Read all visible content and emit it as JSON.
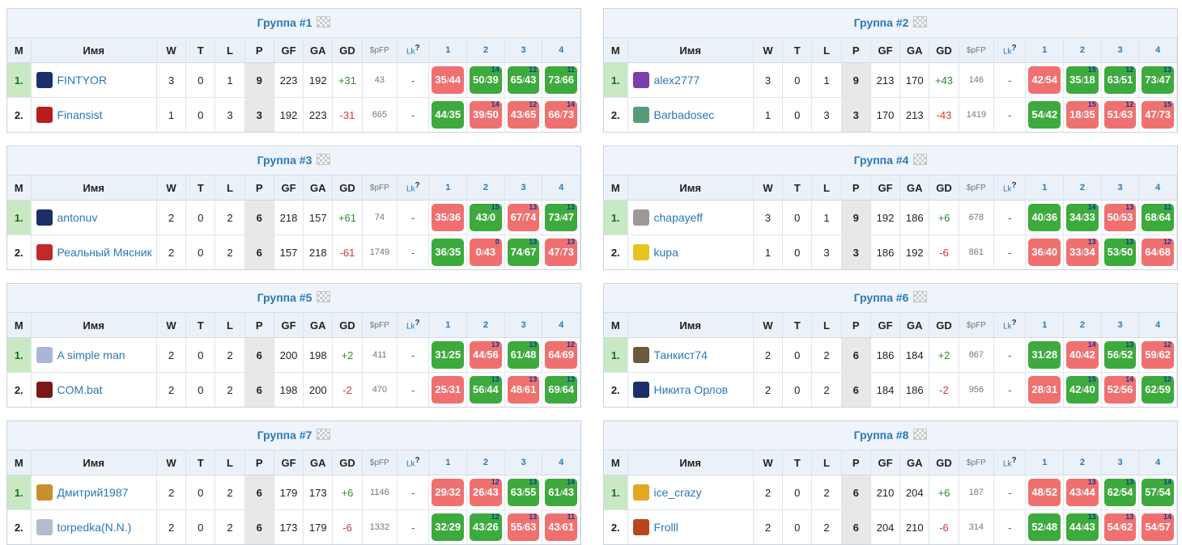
{
  "headers": {
    "m": "М",
    "name": "Имя",
    "w": "W",
    "t": "T",
    "l": "L",
    "p": "P",
    "gf": "GF",
    "ga": "GA",
    "gd": "GD",
    "spfp": "$pFP",
    "lk": "Lk",
    "lk_sup": "?",
    "rounds": [
      "1",
      "2",
      "3",
      "4"
    ]
  },
  "groups": [
    {
      "title": "Группа #1",
      "rows": [
        {
          "pos": "1.",
          "name": "FINTYOR",
          "avatar_color": "#1b2f6b",
          "w": "3",
          "t": "0",
          "l": "1",
          "p": "9",
          "gf": "223",
          "ga": "192",
          "gd": "+31",
          "spfp": "43",
          "lk": "-",
          "scores": [
            {
              "a": "35",
              "b": "44",
              "win": false,
              "tiny": ""
            },
            {
              "a": "50",
              "b": "39",
              "win": true,
              "tiny": "14"
            },
            {
              "a": "65",
              "b": "43",
              "win": true,
              "tiny": "12"
            },
            {
              "a": "73",
              "b": "66",
              "win": true,
              "tiny": "11"
            }
          ]
        },
        {
          "pos": "2.",
          "name": "Finansist",
          "avatar_color": "#b81d1d",
          "w": "1",
          "t": "0",
          "l": "3",
          "p": "3",
          "gf": "192",
          "ga": "223",
          "gd": "-31",
          "spfp": "665",
          "lk": "-",
          "scores": [
            {
              "a": "44",
              "b": "35",
              "win": true,
              "tiny": ""
            },
            {
              "a": "39",
              "b": "50",
              "win": false,
              "tiny": "14"
            },
            {
              "a": "43",
              "b": "65",
              "win": false,
              "tiny": "12"
            },
            {
              "a": "66",
              "b": "73",
              "win": false,
              "tiny": "14"
            }
          ]
        }
      ]
    },
    {
      "title": "Группа #2",
      "rows": [
        {
          "pos": "1.",
          "name": "alex2777",
          "avatar_color": "#7a3fa8",
          "w": "3",
          "t": "0",
          "l": "1",
          "p": "9",
          "gf": "213",
          "ga": "170",
          "gd": "+43",
          "spfp": "146",
          "lk": "-",
          "scores": [
            {
              "a": "42",
              "b": "54",
              "win": false,
              "tiny": ""
            },
            {
              "a": "35",
              "b": "18",
              "win": true,
              "tiny": "15"
            },
            {
              "a": "63",
              "b": "51",
              "win": true,
              "tiny": "12"
            },
            {
              "a": "73",
              "b": "47",
              "win": true,
              "tiny": "13"
            }
          ]
        },
        {
          "pos": "2.",
          "name": "Barbadosec",
          "avatar_color": "#5a9a7a",
          "w": "1",
          "t": "0",
          "l": "3",
          "p": "3",
          "gf": "170",
          "ga": "213",
          "gd": "-43",
          "spfp": "1419",
          "lk": "-",
          "scores": [
            {
              "a": "54",
              "b": "42",
              "win": true,
              "tiny": ""
            },
            {
              "a": "18",
              "b": "35",
              "win": false,
              "tiny": "15"
            },
            {
              "a": "51",
              "b": "63",
              "win": false,
              "tiny": "12"
            },
            {
              "a": "47",
              "b": "73",
              "win": false,
              "tiny": "15"
            }
          ]
        }
      ]
    },
    {
      "title": "Группа #3",
      "rows": [
        {
          "pos": "1.",
          "name": "antonuv",
          "avatar_color": "#1b2f6b",
          "w": "2",
          "t": "0",
          "l": "2",
          "p": "6",
          "gf": "218",
          "ga": "157",
          "gd": "+61",
          "spfp": "74",
          "lk": "-",
          "scores": [
            {
              "a": "35",
              "b": "36",
              "win": false,
              "tiny": ""
            },
            {
              "a": "43",
              "b": "0",
              "win": true,
              "tiny": "15"
            },
            {
              "a": "67",
              "b": "74",
              "win": false,
              "tiny": "13"
            },
            {
              "a": "73",
              "b": "47",
              "win": true,
              "tiny": "13"
            }
          ]
        },
        {
          "pos": "2.",
          "name": "Реальный Мясник",
          "avatar_color": "#c02a2a",
          "w": "2",
          "t": "0",
          "l": "2",
          "p": "6",
          "gf": "157",
          "ga": "218",
          "gd": "-61",
          "spfp": "1749",
          "lk": "-",
          "scores": [
            {
              "a": "36",
              "b": "35",
              "win": true,
              "tiny": ""
            },
            {
              "a": "0",
              "b": "43",
              "win": false,
              "tiny": "0"
            },
            {
              "a": "74",
              "b": "67",
              "win": true,
              "tiny": "13"
            },
            {
              "a": "47",
              "b": "73",
              "win": false,
              "tiny": "13"
            }
          ]
        }
      ]
    },
    {
      "title": "Группа #4",
      "rows": [
        {
          "pos": "1.",
          "name": "chapayeff",
          "avatar_color": "#9a9a9a",
          "w": "3",
          "t": "0",
          "l": "1",
          "p": "9",
          "gf": "192",
          "ga": "186",
          "gd": "+6",
          "spfp": "678",
          "lk": "-",
          "scores": [
            {
              "a": "40",
              "b": "36",
              "win": true,
              "tiny": ""
            },
            {
              "a": "34",
              "b": "33",
              "win": true,
              "tiny": "14"
            },
            {
              "a": "50",
              "b": "53",
              "win": false,
              "tiny": "13"
            },
            {
              "a": "68",
              "b": "64",
              "win": true,
              "tiny": "11"
            }
          ]
        },
        {
          "pos": "2.",
          "name": "kupa",
          "avatar_color": "#e5c51f",
          "w": "1",
          "t": "0",
          "l": "3",
          "p": "3",
          "gf": "186",
          "ga": "192",
          "gd": "-6",
          "spfp": "861",
          "lk": "-",
          "scores": [
            {
              "a": "36",
              "b": "40",
              "win": false,
              "tiny": ""
            },
            {
              "a": "33",
              "b": "34",
              "win": false,
              "tiny": "13"
            },
            {
              "a": "53",
              "b": "50",
              "win": true,
              "tiny": "13"
            },
            {
              "a": "64",
              "b": "68",
              "win": false,
              "tiny": "12"
            }
          ]
        }
      ]
    },
    {
      "title": "Группа #5",
      "rows": [
        {
          "pos": "1.",
          "name": "A simple man",
          "avatar_color": "#a9b7d6",
          "w": "2",
          "t": "0",
          "l": "2",
          "p": "6",
          "gf": "200",
          "ga": "198",
          "gd": "+2",
          "spfp": "411",
          "lk": "-",
          "scores": [
            {
              "a": "31",
              "b": "25",
              "win": true,
              "tiny": ""
            },
            {
              "a": "44",
              "b": "56",
              "win": false,
              "tiny": "13"
            },
            {
              "a": "61",
              "b": "48",
              "win": true,
              "tiny": "13"
            },
            {
              "a": "64",
              "b": "69",
              "win": false,
              "tiny": "12"
            }
          ]
        },
        {
          "pos": "2.",
          "name": "COM.bat",
          "avatar_color": "#7a1818",
          "w": "2",
          "t": "0",
          "l": "2",
          "p": "6",
          "gf": "198",
          "ga": "200",
          "gd": "-2",
          "spfp": "470",
          "lk": "-",
          "scores": [
            {
              "a": "25",
              "b": "31",
              "win": false,
              "tiny": ""
            },
            {
              "a": "56",
              "b": "44",
              "win": true,
              "tiny": "13"
            },
            {
              "a": "48",
              "b": "61",
              "win": false,
              "tiny": "13"
            },
            {
              "a": "69",
              "b": "64",
              "win": true,
              "tiny": "13"
            }
          ]
        }
      ]
    },
    {
      "title": "Группа #6",
      "rows": [
        {
          "pos": "1.",
          "name": "Танкист74",
          "avatar_color": "#6b5a3c",
          "w": "2",
          "t": "0",
          "l": "2",
          "p": "6",
          "gf": "186",
          "ga": "184",
          "gd": "+2",
          "spfp": "867",
          "lk": "-",
          "scores": [
            {
              "a": "31",
              "b": "28",
              "win": true,
              "tiny": ""
            },
            {
              "a": "40",
              "b": "42",
              "win": false,
              "tiny": "14"
            },
            {
              "a": "56",
              "b": "52",
              "win": true,
              "tiny": "13"
            },
            {
              "a": "59",
              "b": "62",
              "win": false,
              "tiny": "12"
            }
          ]
        },
        {
          "pos": "2.",
          "name": "Никита Орлов",
          "avatar_color": "#1b2f6b",
          "w": "2",
          "t": "0",
          "l": "2",
          "p": "6",
          "gf": "184",
          "ga": "186",
          "gd": "-2",
          "spfp": "956",
          "lk": "-",
          "scores": [
            {
              "a": "28",
              "b": "31",
              "win": false,
              "tiny": ""
            },
            {
              "a": "42",
              "b": "40",
              "win": true,
              "tiny": "15"
            },
            {
              "a": "52",
              "b": "56",
              "win": false,
              "tiny": "14"
            },
            {
              "a": "62",
              "b": "59",
              "win": true,
              "tiny": "12"
            }
          ]
        }
      ]
    },
    {
      "title": "Группа #7",
      "rows": [
        {
          "pos": "1.",
          "name": "Дмитрий1987",
          "avatar_color": "#c8902a",
          "w": "2",
          "t": "0",
          "l": "2",
          "p": "6",
          "gf": "179",
          "ga": "173",
          "gd": "+6",
          "spfp": "1146",
          "lk": "-",
          "scores": [
            {
              "a": "29",
              "b": "32",
              "win": false,
              "tiny": ""
            },
            {
              "a": "26",
              "b": "43",
              "win": false,
              "tiny": "12"
            },
            {
              "a": "63",
              "b": "55",
              "win": true,
              "tiny": "13"
            },
            {
              "a": "61",
              "b": "43",
              "win": true,
              "tiny": "14"
            }
          ]
        },
        {
          "pos": "2.",
          "name": "torpedka(N.N.)",
          "avatar_color": "#b3bccf",
          "w": "2",
          "t": "0",
          "l": "2",
          "p": "6",
          "gf": "173",
          "ga": "179",
          "gd": "-6",
          "spfp": "1332",
          "lk": "-",
          "scores": [
            {
              "a": "32",
              "b": "29",
              "win": true,
              "tiny": ""
            },
            {
              "a": "43",
              "b": "26",
              "win": true,
              "tiny": "12"
            },
            {
              "a": "55",
              "b": "63",
              "win": false,
              "tiny": "13"
            },
            {
              "a": "43",
              "b": "61",
              "win": false,
              "tiny": "11"
            }
          ]
        }
      ]
    },
    {
      "title": "Группа #8",
      "rows": [
        {
          "pos": "1.",
          "name": "ice_crazy",
          "avatar_color": "#e5a623",
          "w": "2",
          "t": "0",
          "l": "2",
          "p": "6",
          "gf": "210",
          "ga": "204",
          "gd": "+6",
          "spfp": "187",
          "lk": "-",
          "scores": [
            {
              "a": "48",
              "b": "52",
              "win": false,
              "tiny": ""
            },
            {
              "a": "43",
              "b": "44",
              "win": false,
              "tiny": "13"
            },
            {
              "a": "62",
              "b": "54",
              "win": true,
              "tiny": "13"
            },
            {
              "a": "57",
              "b": "54",
              "win": true,
              "tiny": "14"
            }
          ]
        },
        {
          "pos": "2.",
          "name": "Frolll",
          "avatar_color": "#b8461b",
          "w": "2",
          "t": "0",
          "l": "2",
          "p": "6",
          "gf": "204",
          "ga": "210",
          "gd": "-6",
          "spfp": "314",
          "lk": "-",
          "scores": [
            {
              "a": "52",
              "b": "48",
              "win": true,
              "tiny": ""
            },
            {
              "a": "44",
              "b": "43",
              "win": true,
              "tiny": "13"
            },
            {
              "a": "54",
              "b": "62",
              "win": false,
              "tiny": "13"
            },
            {
              "a": "54",
              "b": "57",
              "win": false,
              "tiny": "14"
            }
          ]
        }
      ]
    }
  ]
}
